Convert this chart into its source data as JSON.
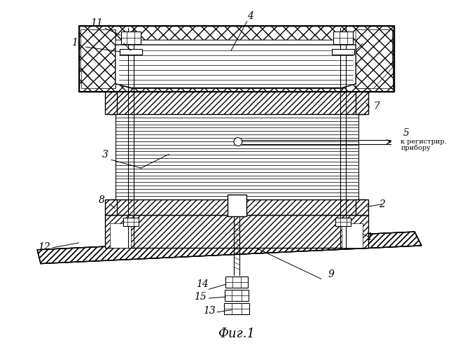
{
  "bg_color": "#ffffff",
  "line_color": "#000000",
  "title": "Фиг.1",
  "label_5_text": "к регистрир.",
  "label_5_text2": "прибору"
}
